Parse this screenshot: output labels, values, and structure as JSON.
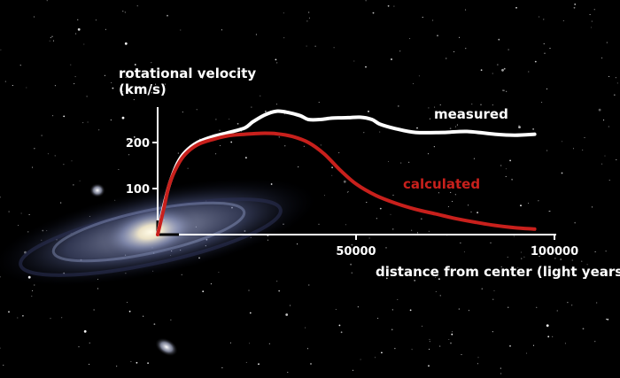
{
  "chart_data": {
    "type": "line",
    "ylabel_line1": "rotational velocity",
    "ylabel_line2": "(km/s)",
    "xlabel": "distance from center (light years)",
    "xlim": [
      0,
      100000
    ],
    "ylim": [
      0,
      300
    ],
    "x_ticks": [
      50000,
      100000
    ],
    "x_tick_labels": [
      "50000",
      "100000"
    ],
    "y_ticks": [
      100,
      200
    ],
    "y_tick_labels": [
      "100",
      "200"
    ],
    "series": [
      {
        "name": "measured",
        "color": "#ffffff",
        "x": [
          0,
          1500,
          3000,
          5000,
          7000,
          10000,
          14000,
          18000,
          22000,
          24000,
          27000,
          30000,
          33000,
          36000,
          38000,
          41000,
          44000,
          48000,
          51000,
          54000,
          56000,
          60000,
          65000,
          72000,
          78000,
          85000,
          90000,
          95000
        ],
        "y": [
          0,
          60,
          110,
          155,
          180,
          200,
          213,
          222,
          232,
          245,
          260,
          268,
          265,
          258,
          250,
          250,
          253,
          254,
          255,
          250,
          240,
          230,
          222,
          222,
          224,
          218,
          216,
          218
        ]
      },
      {
        "name": "calculated",
        "color": "#c8201c",
        "x": [
          0,
          1500,
          3000,
          5000,
          7000,
          10000,
          14000,
          18000,
          22000,
          26000,
          30000,
          34000,
          38000,
          42000,
          46000,
          50000,
          55000,
          60000,
          65000,
          70000,
          75000,
          80000,
          85000,
          90000,
          95000
        ],
        "y": [
          0,
          55,
          110,
          150,
          175,
          195,
          207,
          215,
          218,
          220,
          219,
          213,
          200,
          175,
          140,
          110,
          85,
          68,
          55,
          45,
          35,
          27,
          20,
          15,
          12
        ]
      }
    ]
  },
  "space": {
    "galaxy_color": "#dce4ff",
    "core_color": "#fff6da",
    "star_color": "#ffffff"
  }
}
